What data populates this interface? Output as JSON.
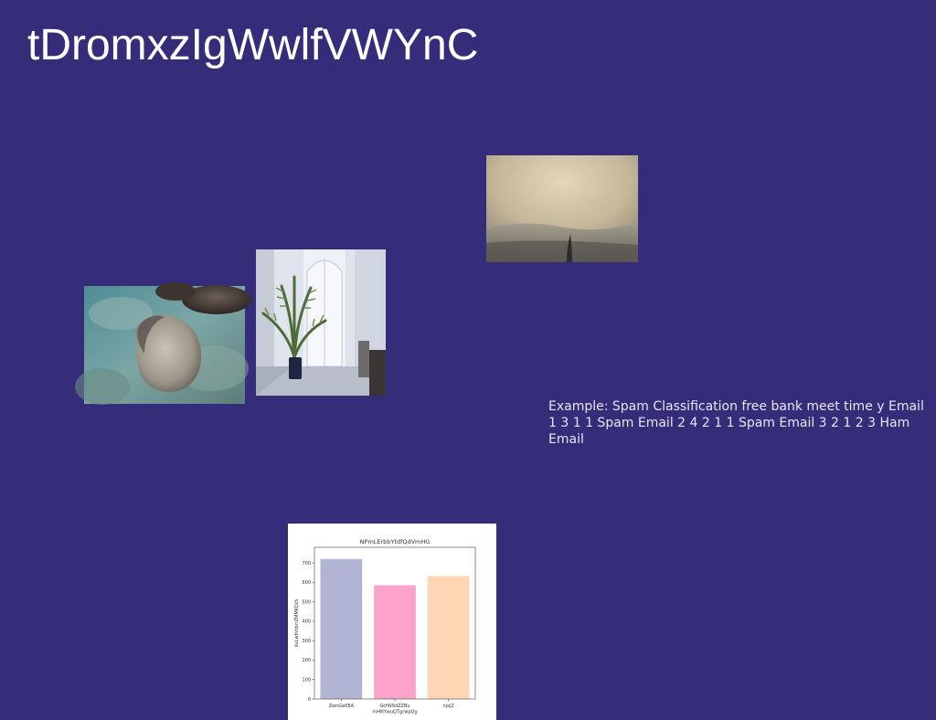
{
  "slide": {
    "title": "tDromxzIgWwlfVWYnC",
    "caption": "Example: Spam Classification free bank meet time y Email 1 3 1 1 Spam Email 2 4 2 1 1 Spam Email 3 2 1 2 3 Ham Email",
    "background_color": "#352c7a",
    "photos": [
      {
        "icon": "rocks-in-shallow-water-photo"
      },
      {
        "icon": "potted-palm-by-white-door-photo"
      },
      {
        "icon": "misty-sky-with-plant-silhouette-photo"
      }
    ]
  },
  "chart_data": {
    "type": "bar",
    "title": "NPmLErbbYtdfQdVmHG",
    "xlabel": "",
    "ylabel": "kuLwfnhbrrZMMKCkS",
    "categories": [
      "ZwnGeKEA",
      "GcfWSdZZBu\nmHNYwuQTgrwpOg",
      "njxJZ"
    ],
    "values": [
      720,
      585,
      632
    ],
    "colors": [
      "#b1b4d2",
      "#fda2c9",
      "#fed6b4"
    ],
    "ylim": [
      0,
      780
    ],
    "yticks": [
      0,
      100,
      200,
      300,
      400,
      500,
      600,
      700
    ],
    "grid": false
  }
}
